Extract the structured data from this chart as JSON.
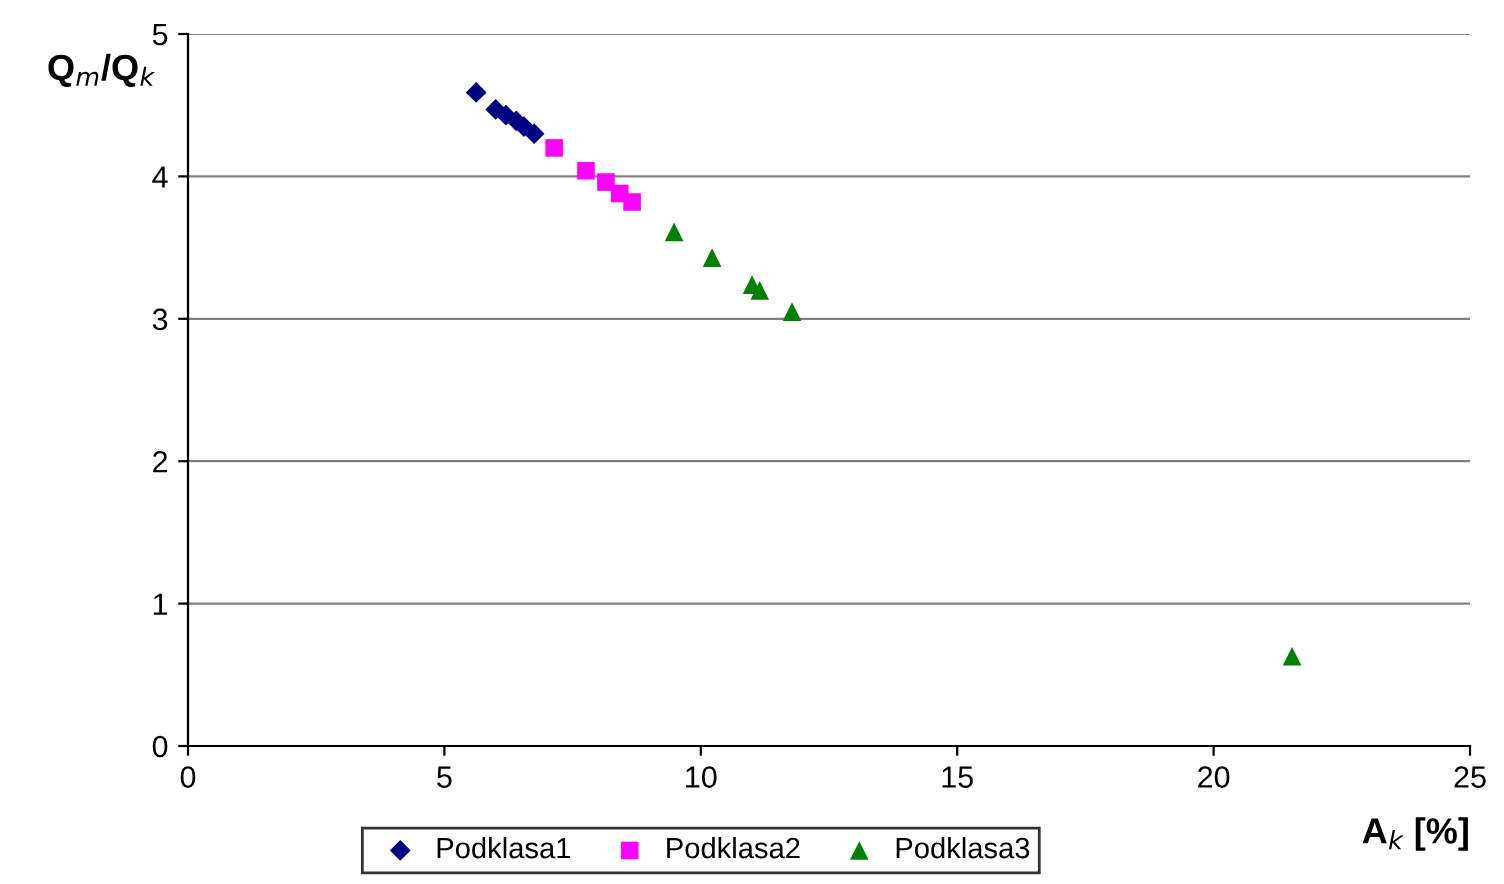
{
  "chart_data": {
    "type": "scatter",
    "xlabel": "A$_{k}$ [%]",
    "ylabel": "Q$_{m}$/Q$_{k}$",
    "xlim": [
      0,
      25
    ],
    "xticks": [
      0,
      5,
      10,
      15,
      20,
      25
    ],
    "ylim": [
      0,
      5
    ],
    "yticks": [
      0,
      1,
      2,
      3,
      4,
      5
    ],
    "grid": "y",
    "legend": "bottom",
    "series": [
      {
        "name": "Podklasa1",
        "color": "#000080",
        "marker": "diamond",
        "x": [
          5.62,
          6.0,
          6.2,
          6.4,
          6.55,
          6.75
        ],
        "values": [
          4.59,
          4.47,
          4.43,
          4.39,
          4.35,
          4.3
        ]
      },
      {
        "name": "Podklasa2",
        "color": "#ff00ff",
        "marker": "square",
        "x": [
          7.14,
          7.76,
          8.15,
          8.42,
          8.66
        ],
        "values": [
          4.2,
          4.04,
          3.96,
          3.88,
          3.82
        ]
      },
      {
        "name": "Podklasa3",
        "color": "#008000",
        "marker": "triangle",
        "x": [
          9.48,
          10.22,
          11.0,
          11.15,
          11.78,
          21.53
        ],
        "values": [
          3.61,
          3.43,
          3.24,
          3.2,
          3.05,
          0.63
        ]
      }
    ]
  }
}
